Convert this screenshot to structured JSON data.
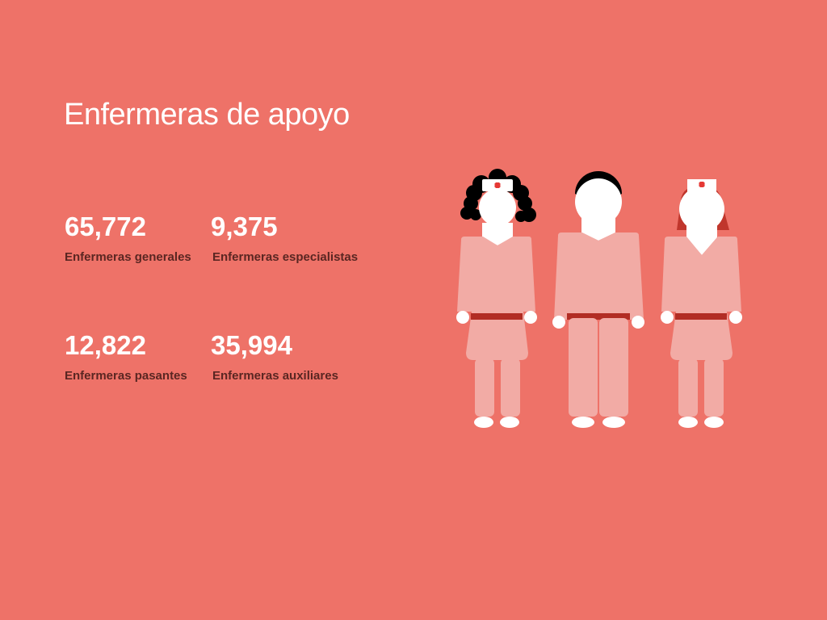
{
  "page": {
    "title": "Enfermeras de apoyo"
  },
  "stats": [
    {
      "value": "65,772",
      "label": "Enfermeras generales"
    },
    {
      "value": "9,375",
      "label": "Enfermeras especialistas"
    },
    {
      "value": "12,822",
      "label": "Enfermeras pasantes"
    },
    {
      "value": "35,994",
      "label": "Enfermeras auxiliares"
    }
  ],
  "colors": {
    "background": "#ee7268",
    "uniform": "#f2aba5",
    "belt": "#b22d24",
    "skin": "#ffffff",
    "hair_dark": "#000000",
    "hair_red": "#c0362c",
    "cross": "#e53935",
    "label_text": "#5a2622"
  },
  "illustration": {
    "figures": [
      "nurse-curly-hair",
      "male-nurse",
      "nurse-red-hair"
    ]
  }
}
